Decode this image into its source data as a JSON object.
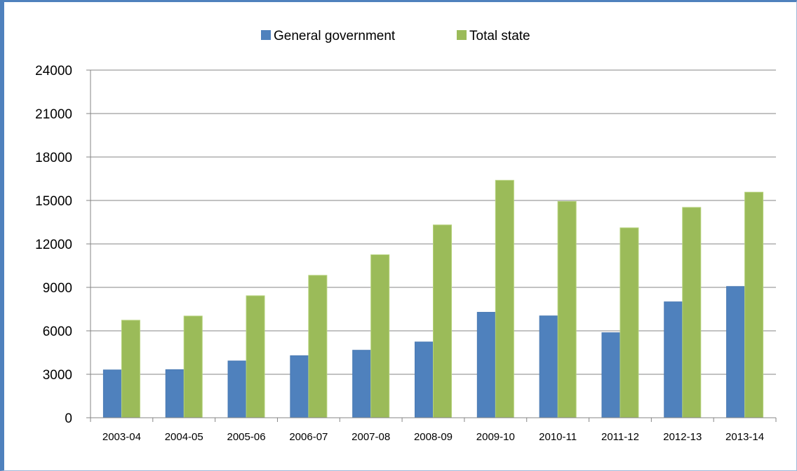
{
  "chart_data": {
    "type": "bar",
    "categories": [
      "2003-04",
      "2004-05",
      "2005-06",
      "2006-07",
      "2007-08",
      "2008-09",
      "2009-10",
      "2010-11",
      "2011-12",
      "2012-13",
      "2013-14"
    ],
    "series": [
      {
        "name": "General government",
        "color": "#4f81bd",
        "values": [
          3300,
          3320,
          3920,
          4280,
          4660,
          5230,
          7280,
          7030,
          5870,
          8000,
          9060
        ]
      },
      {
        "name": "Total state",
        "color": "#9bbb59",
        "values": [
          6730,
          7020,
          8420,
          9830,
          11250,
          13310,
          16390,
          14930,
          13110,
          14520,
          15570
        ]
      }
    ],
    "title": "",
    "xlabel": "",
    "ylabel": "",
    "ylim": [
      0,
      24000
    ],
    "yticks": [
      0,
      3000,
      6000,
      9000,
      12000,
      15000,
      18000,
      21000,
      24000
    ],
    "grid": true,
    "legend_position": "top-center"
  }
}
